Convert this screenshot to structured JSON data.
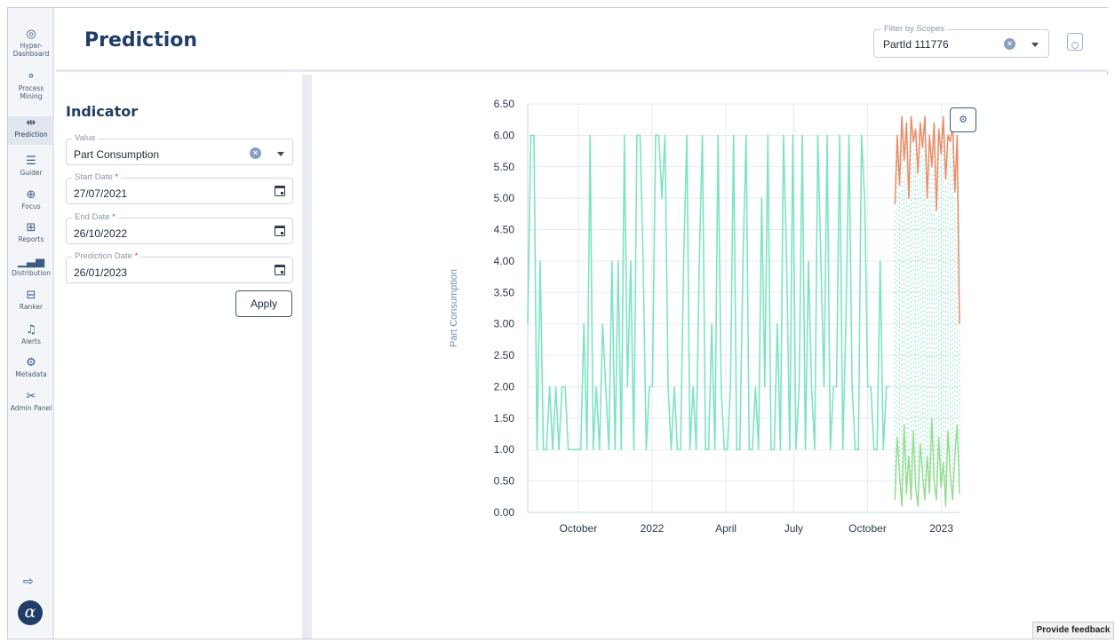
{
  "nav": {
    "items": [
      {
        "label": "Hyper-\nDashboard",
        "icon": "dashboard-icon",
        "glyph": "◎"
      },
      {
        "label": "Process\nMining",
        "icon": "process-mining-icon",
        "glyph": "⚬"
      },
      {
        "label": "Prediction",
        "icon": "prediction-icon",
        "glyph": "⇹"
      },
      {
        "label": "Guider",
        "icon": "guider-icon",
        "glyph": "☰"
      },
      {
        "label": "Focus",
        "icon": "focus-icon",
        "glyph": "⊕"
      },
      {
        "label": "Reports",
        "icon": "reports-icon",
        "glyph": "⊞"
      },
      {
        "label": "Distribution",
        "icon": "distribution-icon",
        "glyph": "▁▃▅"
      },
      {
        "label": "Ranker",
        "icon": "ranker-icon",
        "glyph": "⊟"
      },
      {
        "label": "Alerts",
        "icon": "bell-icon",
        "glyph": "♫"
      },
      {
        "label": "Metadata",
        "icon": "gear-icon",
        "glyph": "⚙"
      },
      {
        "label": "Admin Panel",
        "icon": "tools-icon",
        "glyph": "✂"
      }
    ],
    "logout_glyph": "⇨",
    "logo_glyph": "α"
  },
  "header": {
    "title": "Prediction",
    "filter_label": "Filter by Scopes",
    "filter_value": "PartId 111776"
  },
  "panel": {
    "title": "Indicator",
    "value_label": "Value",
    "value": "Part Consumption",
    "start_label": "Start Date",
    "start_value": "27/07/2021",
    "end_label": "End Date",
    "end_value": "26/10/2022",
    "prediction_label": "Prediction Date",
    "prediction_value": "26/01/2023",
    "required_mark": "*",
    "apply_label": "Apply"
  },
  "feedback_label": "Provide feedback",
  "chart_data": {
    "type": "line",
    "ylabel": "Part Consumption",
    "ylim": [
      0,
      6.5
    ],
    "yticks": [
      "6.50",
      "6.00",
      "5.50",
      "5.00",
      "4.50",
      "4.00",
      "3.50",
      "3.00",
      "2.50",
      "2.00",
      "1.50",
      "1.00",
      "0.50",
      "0.00"
    ],
    "xticks": [
      "October",
      "2022",
      "April",
      "July",
      "October",
      "2023"
    ],
    "grid": true,
    "colors": {
      "history": "#7de3c3",
      "forecast": "#ec8a67",
      "lower": "#8fdc8a",
      "band": "#8fe3c9"
    },
    "series": [
      {
        "values": [
          3,
          6,
          6,
          1,
          4,
          1,
          1,
          2,
          1,
          2,
          1,
          2,
          2,
          1,
          1,
          1,
          1,
          1,
          3,
          1,
          6,
          1,
          2,
          1,
          3,
          2,
          1,
          4,
          1,
          4,
          1,
          6,
          2,
          4,
          1,
          6,
          6,
          4,
          1,
          2,
          2,
          6,
          6,
          5,
          6,
          2,
          1,
          2,
          1,
          1,
          4,
          6,
          1,
          2,
          1,
          4,
          6,
          1,
          1,
          3,
          1,
          6,
          2,
          1,
          1,
          2,
          6,
          1,
          1,
          4,
          6,
          1,
          1,
          2,
          1,
          5,
          2,
          6,
          1,
          1,
          3,
          1,
          6,
          4,
          1,
          6,
          1,
          2,
          6,
          1,
          4,
          2,
          1,
          6,
          4,
          2,
          6,
          1,
          2,
          2,
          6,
          1,
          3,
          6,
          2,
          1,
          1,
          6,
          5,
          2,
          2,
          1,
          1,
          4,
          1,
          2,
          2
        ]
      },
      {
        "values": [
          4.9,
          6,
          5.2,
          6.3,
          5.6,
          6.2,
          5,
          6.3,
          5.9,
          6.1,
          5.4,
          6.2,
          5.8,
          6.3,
          5,
          6,
          5.5,
          6.2,
          4.8,
          6.1,
          5.7,
          6.3,
          5.3,
          6,
          5.9,
          6.2,
          5.1,
          6,
          3
        ]
      },
      {
        "values": [
          0.2,
          1.2,
          0.6,
          0.1,
          1.4,
          0.3,
          0.9,
          0.2,
          1.3,
          0.4,
          0.1,
          1.1,
          0.6,
          0.2,
          0.9,
          0.3,
          1.5,
          0.5,
          0.2,
          1.2,
          0.4,
          0.8,
          0.1,
          1.3,
          0.6,
          0.2,
          0.9,
          1.4,
          0.3
        ]
      }
    ]
  }
}
